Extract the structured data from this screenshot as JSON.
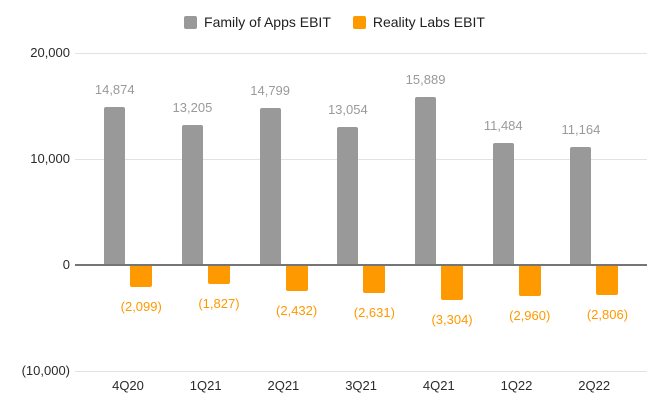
{
  "chart_data": {
    "type": "bar",
    "title": "",
    "categories": [
      "4Q20",
      "1Q21",
      "2Q21",
      "3Q21",
      "4Q21",
      "1Q22",
      "2Q22"
    ],
    "series": [
      {
        "name": "Family of Apps EBIT",
        "color": "#999999",
        "label_color": "#9a9a9a",
        "values": [
          14874,
          13205,
          14799,
          13054,
          15889,
          11484,
          11164
        ],
        "labels": [
          "14,874",
          "13,205",
          "14,799",
          "13,054",
          "15,889",
          "11,484",
          "11,164"
        ]
      },
      {
        "name": "Reality Labs EBIT",
        "color": "#FF9900",
        "label_color": "#FF9900",
        "values": [
          -2099,
          -1827,
          -2432,
          -2631,
          -3304,
          -2960,
          -2806
        ],
        "labels": [
          "(2,099)",
          "(1,827)",
          "(2,432)",
          "(2,631)",
          "(3,304)",
          "(2,960)",
          "(2,806)"
        ]
      }
    ],
    "xlabel": "",
    "ylabel": "",
    "ylim": [
      -10000,
      20000
    ],
    "yticks": [
      {
        "value": 20000,
        "label": "20,000"
      },
      {
        "value": 10000,
        "label": "10,000"
      },
      {
        "value": 0,
        "label": "0"
      },
      {
        "value": -10000,
        "label": "(10,000)"
      }
    ],
    "grid": true,
    "legend_position": "top",
    "background_color": "#ffffff",
    "axis_line_color": "#757575",
    "gridline_color": "#e2e2e2"
  }
}
